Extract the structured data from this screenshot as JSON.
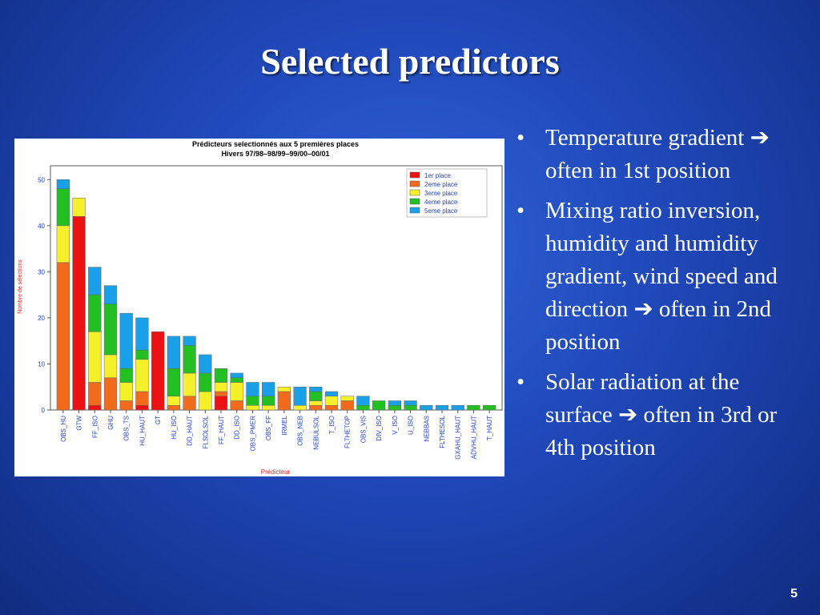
{
  "slide": {
    "title": "Selected predictors",
    "page_number": "5"
  },
  "bullets": [
    "Temperature gradient ➔ often in 1st position",
    "Mixing ratio inversion, humidity and humidity gradient, wind speed and direction ➔ often in 2nd position",
    "Solar radiation at the surface ➔ often in 3rd or 4th position"
  ],
  "chart_data": {
    "type": "bar",
    "stacked": true,
    "title": "Prédicteurs selectionnés aux 5 premières places",
    "subtitle": "Hivers 97/98–98/99–99/00–00/01",
    "xlabel": "Prédicteur",
    "ylabel": "Nombre de sélections",
    "ylim": [
      0,
      53
    ],
    "yticks": [
      0,
      10,
      20,
      30,
      40,
      50
    ],
    "legend_position": "top-right",
    "categories": [
      "OBS_HU",
      "GTW",
      "FF_ISO",
      "GHU",
      "OBS_TS",
      "HU_HAUT",
      "GT",
      "HU_ISO",
      "DD_HAUT",
      "FLSOLSOL",
      "FF_HAUT",
      "DD_ISO",
      "OBS_PMER",
      "OBS_FF",
      "IRMEL",
      "OBS_NEB",
      "NEBULSOL",
      "T_ISO",
      "FLTHETOP",
      "OBS_VIS",
      "DIV_ISO",
      "V_ISO",
      "U_ISO",
      "NEBBAS",
      "FLTHESOL",
      "GXAHU_HAUT",
      "ADVHU_HAUT",
      "T_HAUT"
    ],
    "series": [
      {
        "name": "1er place",
        "color": "#ee1111",
        "values": [
          0,
          42,
          1,
          0,
          0,
          1,
          17,
          0,
          0,
          0,
          3,
          0,
          0,
          0,
          0,
          0,
          0,
          0,
          0,
          0,
          0,
          0,
          0,
          0,
          0,
          0,
          0,
          0
        ]
      },
      {
        "name": "2eme place",
        "color": "#f26a1c",
        "values": [
          32,
          0,
          5,
          7,
          2,
          3,
          0,
          1,
          3,
          0,
          1,
          2,
          0,
          0,
          4,
          0,
          1,
          1,
          2,
          0,
          0,
          0,
          0,
          0,
          0,
          0,
          0,
          0
        ]
      },
      {
        "name": "3eme place",
        "color": "#f6f02a",
        "values": [
          8,
          4,
          11,
          5,
          4,
          7,
          0,
          2,
          5,
          4,
          2,
          4,
          1,
          1,
          1,
          1,
          1,
          2,
          1,
          0,
          0,
          0,
          0,
          0,
          0,
          0,
          0,
          0
        ]
      },
      {
        "name": "4eme place",
        "color": "#22c022",
        "values": [
          8,
          0,
          8,
          11,
          3,
          2,
          0,
          6,
          6,
          4,
          3,
          1,
          2,
          2,
          0,
          0,
          2,
          0,
          0,
          1,
          2,
          1,
          1,
          0,
          0,
          0,
          1,
          1
        ]
      },
      {
        "name": "5eme place",
        "color": "#1aa0e8",
        "values": [
          2,
          0,
          6,
          4,
          12,
          7,
          0,
          7,
          2,
          4,
          0,
          1,
          3,
          3,
          0,
          4,
          1,
          1,
          0,
          2,
          0,
          1,
          1,
          1,
          1,
          1,
          0,
          0
        ]
      }
    ]
  }
}
